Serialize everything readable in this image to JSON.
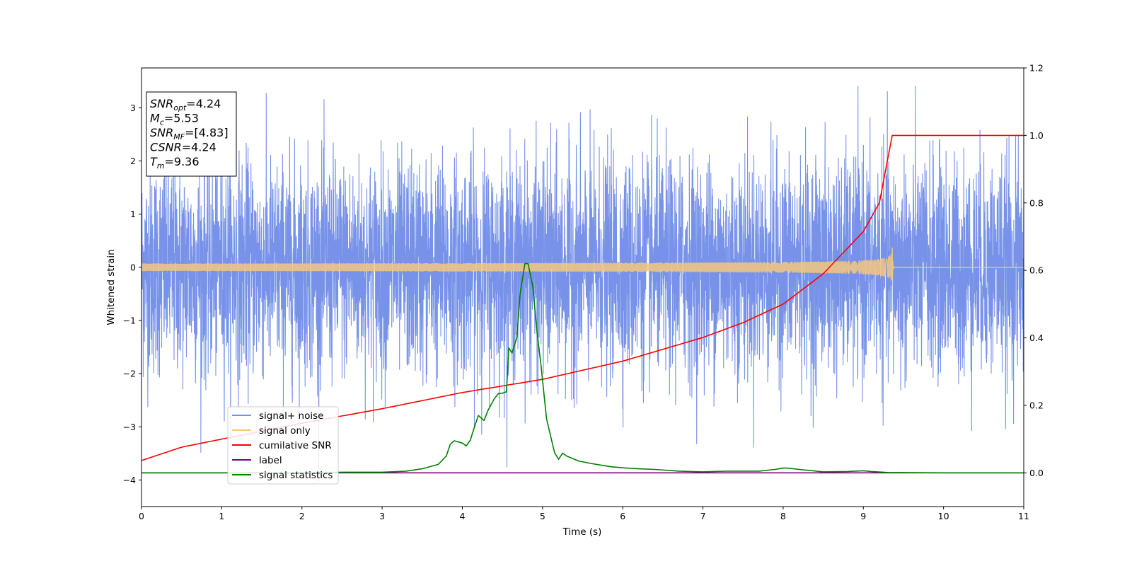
{
  "chart_data": {
    "type": "line",
    "xlabel": "Time (s)",
    "ylabel": "Whitened strain",
    "xlim": [
      0,
      11
    ],
    "ylim": [
      -4.5,
      3.75
    ],
    "y2lim": [
      -0.1,
      1.2
    ],
    "x_ticks": [
      "0",
      "1",
      "2",
      "3",
      "4",
      "5",
      "6",
      "7",
      "8",
      "9",
      "10",
      "11"
    ],
    "y_ticks": [
      "3",
      "2",
      "1",
      "0",
      "−1",
      "−2",
      "−3",
      "−4"
    ],
    "y2_ticks": [
      "1.2",
      "1.0",
      "0.8",
      "0.6",
      "0.4",
      "0.2",
      "0.0"
    ],
    "grid": false,
    "legend_position": "lower-left",
    "annotation": {
      "lines": [
        {
          "sym": "SNR",
          "sub": "opt",
          "text": "=4.24"
        },
        {
          "sym": "M",
          "sub": "c",
          "text": "=5.53"
        },
        {
          "sym": "SNR",
          "sub": "MF",
          "text": "=[4.83]"
        },
        {
          "sym": "CSNR",
          "sub": "",
          "text": "=4.24"
        },
        {
          "sym": "T",
          "sub": "m",
          "text": "=9.36"
        }
      ]
    },
    "series": [
      {
        "name": "signal+ noise",
        "color": "#7792e8",
        "axis": "left",
        "kind": "noise",
        "amplitude": 1.0,
        "min": -4.15,
        "max": 3.4
      },
      {
        "name": "signal only",
        "color": "#f5c77e",
        "axis": "left",
        "kind": "chirp",
        "merger_time": 9.36,
        "peak_amplitude": 0.47
      },
      {
        "name": "cumilative SNR",
        "color": "#ff0000",
        "axis": "right",
        "x": [
          0,
          0.5,
          1,
          2,
          3,
          4,
          5,
          6,
          7,
          7.5,
          8,
          8.5,
          9,
          9.2,
          9.36,
          11
        ],
        "y": [
          0.0365,
          0.076,
          0.1,
          0.147,
          0.19,
          0.238,
          0.277,
          0.331,
          0.401,
          0.445,
          0.5,
          0.59,
          0.715,
          0.8,
          1.0,
          1.0
        ]
      },
      {
        "name": "label",
        "color": "#800080",
        "axis": "right",
        "x": [
          0,
          11
        ],
        "y": [
          0,
          0
        ]
      },
      {
        "name": "signal statistics",
        "color": "#008000",
        "axis": "right",
        "x": [
          0,
          1,
          2,
          2.5,
          3,
          3.3,
          3.5,
          3.7,
          3.8,
          3.85,
          3.9,
          4.0,
          4.05,
          4.1,
          4.15,
          4.2,
          4.27,
          4.32,
          4.4,
          4.45,
          4.5,
          4.55,
          4.58,
          4.62,
          4.68,
          4.72,
          4.78,
          4.82,
          4.88,
          4.93,
          4.98,
          5.05,
          5.15,
          5.2,
          5.25,
          5.3,
          5.45,
          5.6,
          5.75,
          5.85,
          6.0,
          6.2,
          6.4,
          6.7,
          7.0,
          7.3,
          7.7,
          7.9,
          8.0,
          8.05,
          8.2,
          8.5,
          8.8,
          9.0,
          9.1,
          9.3,
          10,
          11
        ],
        "y": [
          0.0,
          0.0,
          0.0,
          0.002,
          0.002,
          0.005,
          0.012,
          0.025,
          0.05,
          0.085,
          0.095,
          0.088,
          0.08,
          0.097,
          0.135,
          0.17,
          0.155,
          0.185,
          0.22,
          0.235,
          0.236,
          0.24,
          0.37,
          0.355,
          0.4,
          0.53,
          0.62,
          0.62,
          0.55,
          0.42,
          0.32,
          0.16,
          0.06,
          0.04,
          0.058,
          0.05,
          0.035,
          0.028,
          0.022,
          0.018,
          0.015,
          0.012,
          0.01,
          0.005,
          0.003,
          0.005,
          0.005,
          0.01,
          0.014,
          0.014,
          0.01,
          0.003,
          0.004,
          0.006,
          0.004,
          0.001,
          0.0,
          0.0
        ]
      }
    ]
  }
}
